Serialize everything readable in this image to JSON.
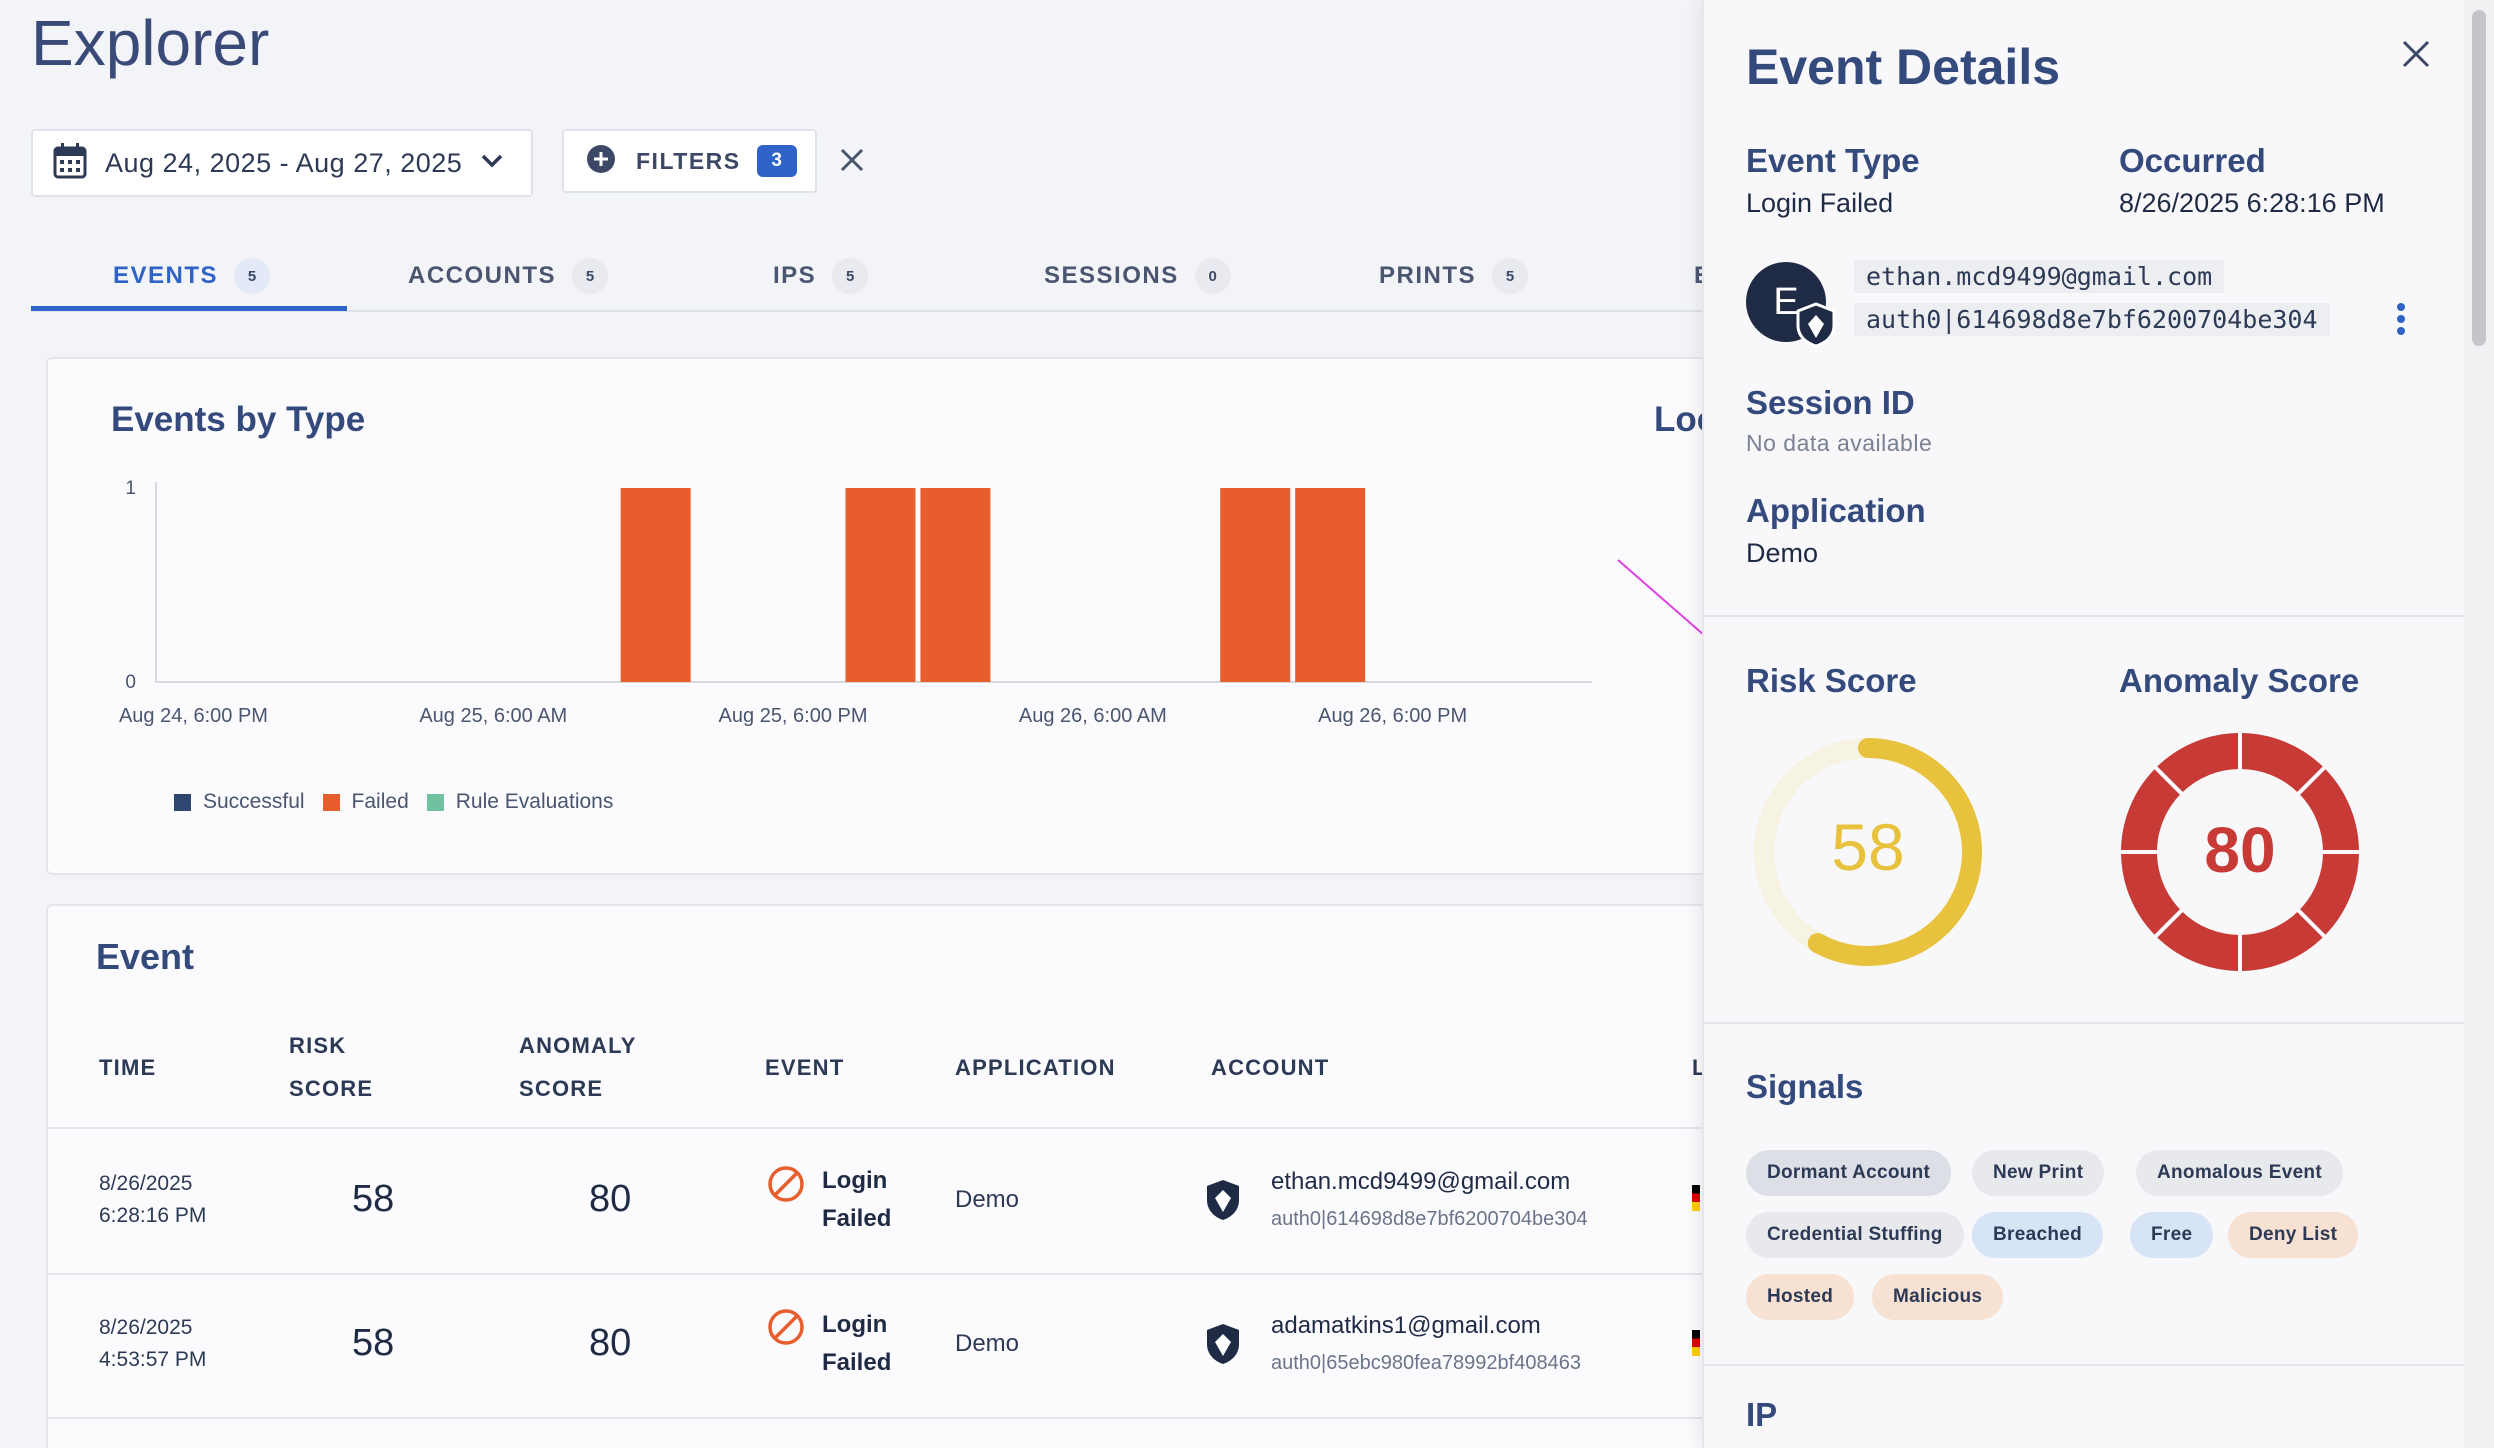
{
  "page": {
    "title": "Explorer"
  },
  "toolbar": {
    "date_range": "Aug 24, 2025 - Aug 27, 2025",
    "filters_label": "FILTERS",
    "filters_count": "3"
  },
  "tabs": [
    {
      "label": "EVENTS",
      "count": "5",
      "active": true
    },
    {
      "label": "ACCOUNTS",
      "count": "5"
    },
    {
      "label": "IPS",
      "count": "5"
    },
    {
      "label": "SESSIONS",
      "count": "0"
    },
    {
      "label": "PRINTS",
      "count": "5"
    },
    {
      "label": "E",
      "count": ""
    }
  ],
  "chart_title": "Events by Type",
  "loc_title": "Loc",
  "chart_data": {
    "type": "bar",
    "x_tick_labels": [
      "Aug 24, 6:00 PM",
      "Aug 25, 6:00 AM",
      "Aug 25, 6:00 PM",
      "Aug 26, 6:00 AM",
      "Aug 26, 6:00 PM"
    ],
    "y_tick_labels": [
      "0",
      "1"
    ],
    "ylim": [
      0,
      1
    ],
    "series": [
      {
        "name": "Successful",
        "color": "#2f4670",
        "values": []
      },
      {
        "name": "Failed",
        "color": "#e85d2c",
        "values": [
          1,
          1,
          1,
          1,
          1
        ]
      },
      {
        "name": "Rule Evaluations",
        "color": "#6fc1a0",
        "values": []
      }
    ],
    "bar_times_hours_from_first_tick": [
      18.5,
      27.5,
      30.5,
      42.5,
      45.5
    ],
    "tick_interval_hours": 12,
    "xlim_hours_from_first_tick": [
      -1.5,
      55.5
    ],
    "legend_position": "bottom-left",
    "grid": false
  },
  "event_table": {
    "title": "Event",
    "headers": {
      "time": "TIME",
      "risk_1": "RISK",
      "risk_2": "SCORE",
      "anom_1": "ANOMALY",
      "anom_2": "SCORE",
      "event": "EVENT",
      "application": "APPLICATION",
      "account": "ACCOUNT",
      "extra": "L"
    },
    "rows": [
      {
        "date": "8/26/2025",
        "time": "6:28:16 PM",
        "risk": "58",
        "anomaly": "80",
        "event_1": "Login",
        "event_2": "Failed",
        "application": "Demo",
        "email": "ethan.mcd9499@gmail.com",
        "account_id": "auth0|614698d8e7bf6200704be304"
      },
      {
        "date": "8/26/2025",
        "time": "4:53:57 PM",
        "risk": "58",
        "anomaly": "80",
        "event_1": "Login",
        "event_2": "Failed",
        "application": "Demo",
        "email": "adamatkins1@gmail.com",
        "account_id": "auth0|65ebc980fea78992bf408463"
      }
    ]
  },
  "panel": {
    "title": "Event Details",
    "event_type_label": "Event Type",
    "event_type_value": "Login Failed",
    "occurred_label": "Occurred",
    "occurred_value": "8/26/2025 6:28:16 PM",
    "avatar_letter": "E",
    "email": "ethan.mcd9499@gmail.com",
    "account_id": "auth0|614698d8e7bf6200704be304",
    "session_label": "Session ID",
    "session_value": "No data available",
    "application_label": "Application",
    "application_value": "Demo",
    "risk_label": "Risk Score",
    "risk_value": "58",
    "risk_fraction": 0.58,
    "risk_color": "#e8c23c",
    "anomaly_label": "Anomaly Score",
    "anomaly_value": "80",
    "anomaly_color": "#c73a35",
    "signals_label": "Signals",
    "signals": [
      "Dormant Account",
      "New Print",
      "Anomalous Event",
      "Credential Stuffing",
      "Breached",
      "Free",
      "Deny List",
      "Hosted",
      "Malicious"
    ],
    "ip_label": "IP"
  },
  "colors": {
    "accent": "#2f63c8",
    "heading": "#354a7c",
    "failed": "#e85d2c",
    "annotation_arrow": "#e040e0"
  }
}
